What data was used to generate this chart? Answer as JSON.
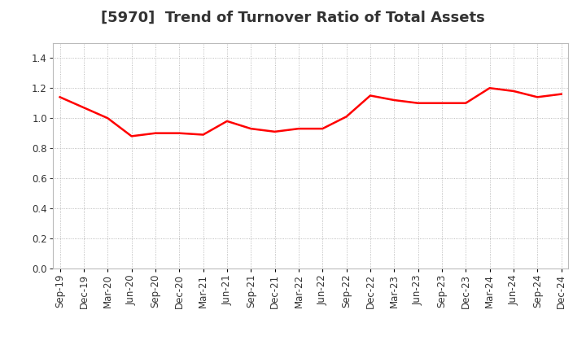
{
  "title": "[5970]  Trend of Turnover Ratio of Total Assets",
  "labels": [
    "Sep-19",
    "Dec-19",
    "Mar-20",
    "Jun-20",
    "Sep-20",
    "Dec-20",
    "Mar-21",
    "Jun-21",
    "Sep-21",
    "Dec-21",
    "Mar-22",
    "Jun-22",
    "Sep-22",
    "Dec-22",
    "Mar-23",
    "Jun-23",
    "Sep-23",
    "Dec-23",
    "Mar-24",
    "Jun-24",
    "Sep-24",
    "Dec-24"
  ],
  "values": [
    1.14,
    1.07,
    1.0,
    0.88,
    0.9,
    0.9,
    0.89,
    0.98,
    0.93,
    0.91,
    0.93,
    0.93,
    1.01,
    1.15,
    1.12,
    1.1,
    1.1,
    1.1,
    1.2,
    1.18,
    1.14,
    1.16
  ],
  "line_color": "#FF0000",
  "line_width": 1.8,
  "background_color": "#ffffff",
  "plot_bg_color": "#ffffff",
  "grid_color": "#aaaaaa",
  "ylim": [
    0.0,
    1.5
  ],
  "yticks": [
    0.0,
    0.2,
    0.4,
    0.6,
    0.8,
    1.0,
    1.2,
    1.4
  ],
  "title_fontsize": 13,
  "tick_fontsize": 8.5,
  "title_color": "#333333"
}
